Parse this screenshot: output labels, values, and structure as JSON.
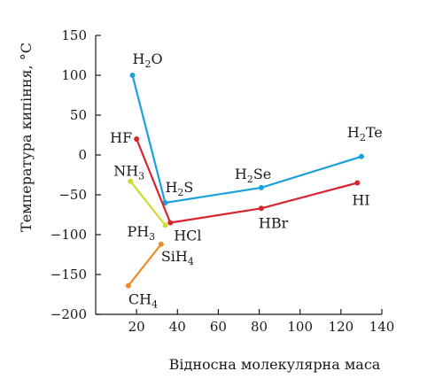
{
  "chart_data": {
    "type": "line",
    "xlabel": "Відносна молекулярна маса",
    "ylabel": "Температура кипіння, °C",
    "xlim": [
      0,
      140
    ],
    "ylim": [
      -200,
      150
    ],
    "xticks": [
      20,
      40,
      60,
      80,
      100,
      120,
      140
    ],
    "yticks": [
      150,
      100,
      50,
      0,
      -50,
      -100,
      -150,
      -200
    ],
    "grid": false,
    "series": [
      {
        "color": "#1aa0dc",
        "points": [
          {
            "label": "H₂O",
            "base": "H",
            "sub": "2",
            "tail": "O",
            "x": 18,
            "y": 100
          },
          {
            "label": "H₂S",
            "base": "H",
            "sub": "2",
            "tail": "S",
            "x": 34,
            "y": -60
          },
          {
            "label": "H₂Se",
            "base": "H",
            "sub": "2",
            "tail": "Se",
            "x": 81,
            "y": -41
          },
          {
            "label": "H₂Te",
            "base": "H",
            "sub": "2",
            "tail": "Te",
            "x": 130,
            "y": -2
          }
        ]
      },
      {
        "color": "#d7252f",
        "points": [
          {
            "label": "HF",
            "base": "HF",
            "sub": "",
            "tail": "",
            "x": 20,
            "y": 20
          },
          {
            "label": "HCl",
            "base": "HCl",
            "sub": "",
            "tail": "",
            "x": 36.5,
            "y": -85
          },
          {
            "label": "HBr",
            "base": "HBr",
            "sub": "",
            "tail": "",
            "x": 81,
            "y": -67
          },
          {
            "label": "HI",
            "base": "HI",
            "sub": "",
            "tail": "",
            "x": 128,
            "y": -35
          }
        ]
      },
      {
        "color": "#cddc33",
        "points": [
          {
            "label": "NH₃",
            "base": "NH",
            "sub": "3",
            "tail": "",
            "x": 17,
            "y": -33
          },
          {
            "label": "PH₃",
            "base": "PH",
            "sub": "3",
            "tail": "",
            "x": 34,
            "y": -88
          }
        ]
      },
      {
        "color": "#ef8a2a",
        "points": [
          {
            "label": "CH₄",
            "base": "CH",
            "sub": "4",
            "tail": "",
            "x": 16,
            "y": -164
          },
          {
            "label": "SiH₄",
            "base": "SiH",
            "sub": "4",
            "tail": "",
            "x": 32,
            "y": -112
          }
        ]
      }
    ]
  }
}
